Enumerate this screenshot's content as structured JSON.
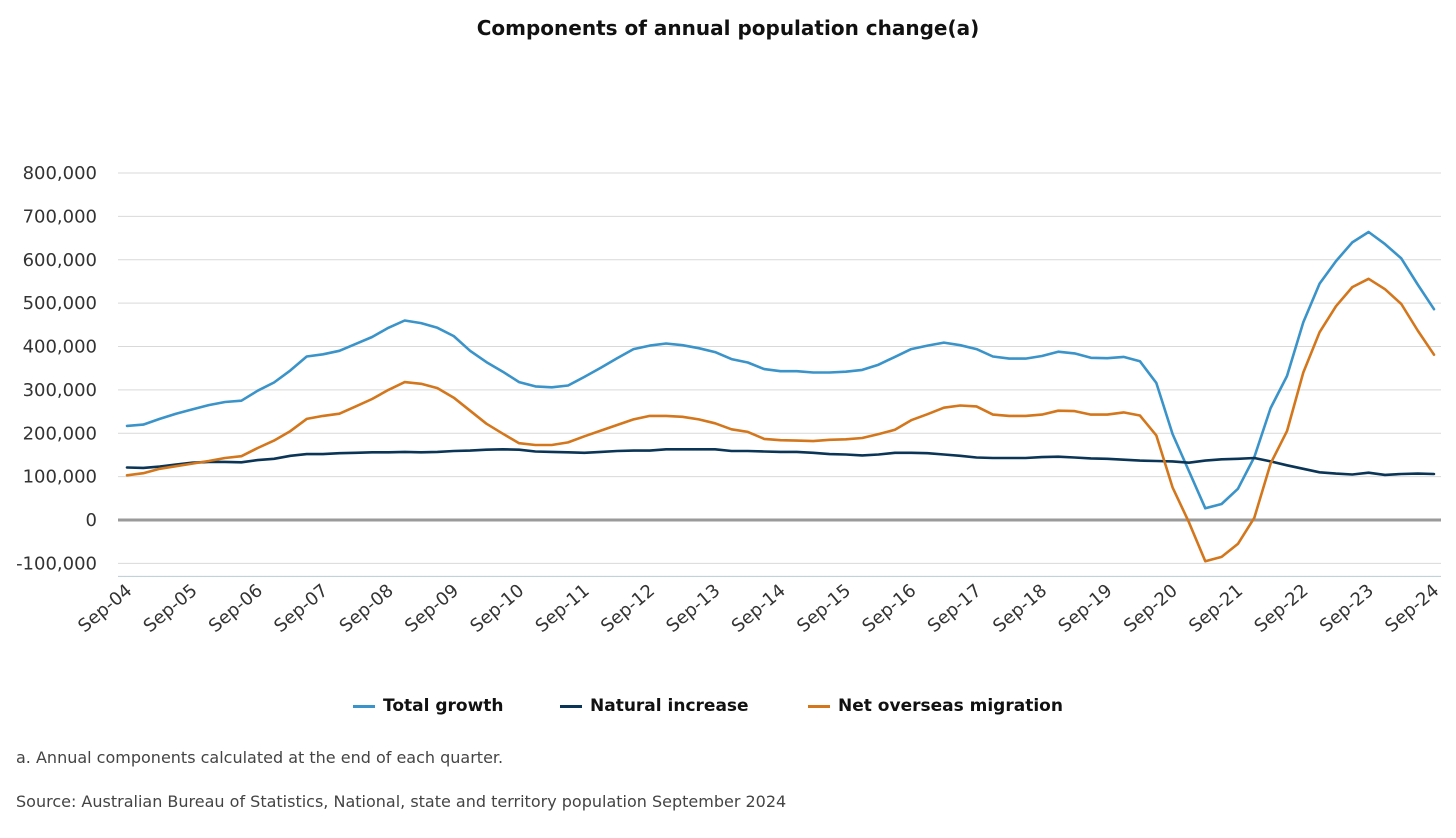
{
  "chart_data": {
    "type": "line",
    "title": "Components of annual population change(a)",
    "ylim": [
      -130000,
      800000
    ],
    "yticks": [
      -100000,
      0,
      100000,
      200000,
      300000,
      400000,
      500000,
      600000,
      700000,
      800000
    ],
    "ytick_labels": [
      "-100,000",
      "0",
      "100,000",
      "200,000",
      "300,000",
      "400,000",
      "500,000",
      "600,000",
      "700,000",
      "800,000"
    ],
    "xtick_labels": [
      "Sep-04",
      "Sep-05",
      "Sep-06",
      "Sep-07",
      "Sep-08",
      "Sep-09",
      "Sep-10",
      "Sep-11",
      "Sep-12",
      "Sep-13",
      "Sep-14",
      "Sep-15",
      "Sep-16",
      "Sep-17",
      "Sep-18",
      "Sep-19",
      "Sep-20",
      "Sep-21",
      "Sep-22",
      "Sep-23",
      "Sep-24"
    ],
    "grid": true,
    "legend_position": "bottom",
    "x_start": "Sep-04",
    "x_end": "Sep-24",
    "x_frequency": "quarterly",
    "series": [
      {
        "name": "Total growth",
        "color": "#3a93c9",
        "values": [
          217000,
          220000,
          233000,
          245000,
          255000,
          265000,
          272000,
          275000,
          298000,
          317000,
          345000,
          377000,
          382000,
          390000,
          406000,
          422000,
          443000,
          460000,
          454000,
          443000,
          424000,
          390000,
          364000,
          342000,
          318000,
          308000,
          306000,
          310000,
          330000,
          351000,
          373000,
          394000,
          402000,
          407000,
          403000,
          396000,
          387000,
          371000,
          363000,
          348000,
          343000,
          343000,
          340000,
          340000,
          342000,
          346000,
          358000,
          376000,
          394000,
          402000,
          409000,
          403000,
          394000,
          377000,
          372000,
          372000,
          378000,
          388000,
          384000,
          374000,
          373000,
          376000,
          366000,
          316000,
          198000,
          113000,
          27000,
          37000,
          72000,
          145000,
          258000,
          332000,
          456000,
          545000,
          597000,
          640000,
          664000,
          636000,
          603000,
          543000,
          486000
        ]
      },
      {
        "name": "Natural increase",
        "color": "#0b3556",
        "values": [
          121000,
          120000,
          123000,
          128000,
          132000,
          134000,
          134000,
          133000,
          138000,
          141000,
          148000,
          152000,
          152000,
          154000,
          155000,
          156000,
          156000,
          157000,
          156000,
          157000,
          159000,
          160000,
          162000,
          163000,
          162000,
          158000,
          157000,
          156000,
          155000,
          157000,
          159000,
          160000,
          160000,
          163000,
          163000,
          163000,
          163000,
          159000,
          159000,
          158000,
          157000,
          157000,
          155000,
          152000,
          151000,
          149000,
          151000,
          155000,
          155000,
          154000,
          151000,
          148000,
          144000,
          143000,
          143000,
          143000,
          145000,
          146000,
          144000,
          142000,
          141000,
          139000,
          137000,
          136000,
          135000,
          132000,
          137000,
          140000,
          141000,
          143000,
          135000,
          126000,
          118000,
          110000,
          107000,
          105000,
          109000,
          104000,
          106000,
          107000,
          106000
        ]
      },
      {
        "name": "Net overseas migration",
        "color": "#d3761c",
        "values": [
          103000,
          108000,
          118000,
          124000,
          130000,
          136000,
          143000,
          147000,
          166000,
          183000,
          205000,
          233000,
          240000,
          245000,
          262000,
          279000,
          300000,
          318000,
          314000,
          304000,
          282000,
          252000,
          222000,
          199000,
          177000,
          173000,
          173000,
          179000,
          193000,
          206000,
          219000,
          232000,
          240000,
          240000,
          238000,
          232000,
          223000,
          209000,
          203000,
          187000,
          184000,
          183000,
          182000,
          185000,
          186000,
          189000,
          198000,
          208000,
          230000,
          244000,
          259000,
          264000,
          262000,
          243000,
          240000,
          240000,
          243000,
          252000,
          251000,
          243000,
          243000,
          248000,
          241000,
          195000,
          75000,
          -5000,
          -95000,
          -85000,
          -55000,
          5000,
          130000,
          205000,
          340000,
          433000,
          493000,
          537000,
          556000,
          532000,
          498000,
          437000,
          381000
        ]
      }
    ]
  },
  "notes": {
    "footnote": "a. Annual components calculated at the end of each quarter.",
    "source": "Source: Australian Bureau of Statistics, National, state and territory population September 2024"
  }
}
